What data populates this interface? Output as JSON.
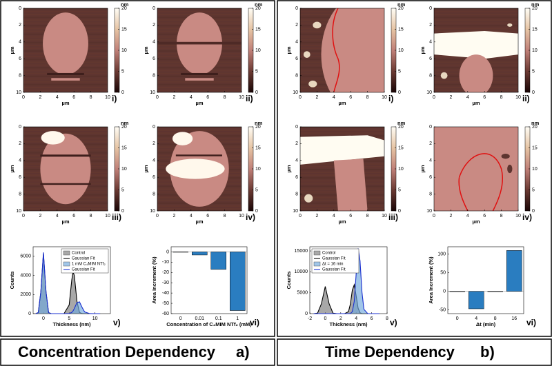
{
  "afm_axes": {
    "lim": [
      0,
      10
    ],
    "ticks": [
      0,
      2,
      4,
      6,
      8,
      10
    ],
    "unit": "µm",
    "colorbar_lim": [
      0,
      20
    ],
    "colorbar_ticks": [
      0,
      5,
      10,
      15,
      20
    ],
    "colorbar_unit": "nm"
  },
  "panels": [
    {
      "title": "Concentration Dependency",
      "letter": "a)",
      "images": [
        "i)",
        "ii)",
        "iii)",
        "iv)"
      ],
      "chart_data": [
        {
          "type": "histogram",
          "label": "v)",
          "x_label": "Thickness (nm)",
          "y_label": "Counts",
          "legend": "upper right",
          "xlim": [
            -2,
            13
          ],
          "xticks": [
            0,
            5,
            10
          ],
          "ylim": [
            0,
            7000
          ],
          "yticks": [
            0,
            2000,
            4000,
            6000
          ],
          "x": [
            -1.5,
            -1,
            -0.5,
            0,
            0.5,
            1,
            1.5,
            2,
            3,
            4,
            5,
            5.5,
            5.75,
            6,
            6.5,
            7,
            7.5,
            8,
            9,
            10,
            11
          ],
          "series": [
            {
              "name": "Control",
              "kind": "histogram",
              "color": "#7a7a7a",
              "values": [
                0,
                107,
                2270,
                6300,
                2270,
                107,
                0,
                0,
                0,
                0,
                906,
                3520,
                4370,
                3990,
                1310,
                126,
                3,
                0,
                0,
                0,
                0
              ]
            },
            {
              "name": "Gaussian Fit",
              "kind": "fit",
              "color": "#000000",
              "values": [
                0,
                107,
                2270,
                6300,
                2270,
                107,
                0,
                0,
                0,
                0,
                906,
                3520,
                4370,
                3990,
                1310,
                126,
                3,
                0,
                0,
                0,
                0
              ]
            },
            {
              "name": "1 mM C₄MIM NTf₂",
              "kind": "histogram",
              "color": "#6fa8dc",
              "values": [
                0,
                109,
                2300,
                6400,
                2300,
                109,
                0,
                0,
                0,
                0,
                14,
                125,
                281,
                535,
                1150,
                1230,
                660,
                176,
                2,
                0,
                0
              ]
            },
            {
              "name": "Gaussian Fit",
              "kind": "fit",
              "color": "#1a2fd0",
              "values": [
                0,
                109,
                2300,
                6400,
                2300,
                109,
                0,
                0,
                0,
                0,
                14,
                125,
                281,
                535,
                1150,
                1230,
                660,
                176,
                2,
                0,
                0
              ]
            }
          ]
        },
        {
          "type": "bar",
          "label": "vi)",
          "x_label": "Concentration of C₄MIM NTf₂ (mM)",
          "y_label": "Area Increment (%)",
          "categories": [
            "0",
            "0.01",
            "0.1",
            "1"
          ],
          "values": [
            0,
            -3,
            -17,
            -57
          ],
          "color": "#2a7dc0",
          "ylim": [
            -60,
            5
          ],
          "yticks": [
            -60,
            -50,
            -40,
            -30,
            -20,
            -10,
            0
          ]
        }
      ]
    },
    {
      "title": "Time Dependency",
      "letter": "b)",
      "images": [
        "i)",
        "ii)",
        "iii)",
        "iv)"
      ],
      "chart_data": [
        {
          "type": "histogram",
          "label": "v)",
          "x_label": "Thickness (nm)",
          "y_label": "Counts",
          "legend": "upper left",
          "xlim": [
            -2,
            8
          ],
          "xticks": [
            -2,
            0,
            2,
            4,
            6,
            8
          ],
          "ylim": [
            0,
            16000
          ],
          "yticks": [
            0,
            5000,
            10000,
            15000
          ],
          "x": [
            -1.5,
            -1,
            -0.5,
            0,
            0.5,
            1,
            1.5,
            2,
            2.5,
            3,
            3.25,
            3.5,
            3.75,
            4,
            4.25,
            4.5,
            4.75,
            5,
            5.5,
            6,
            7
          ],
          "series": [
            {
              "name": "Control",
              "kind": "histogram",
              "color": "#7a7a7a",
              "values": [
                0,
                110,
                2350,
                6500,
                2350,
                110,
                0,
                0,
                0,
                460,
                2280,
                5600,
                6900,
                4250,
                1300,
                200,
                15,
                0,
                0,
                0,
                0
              ]
            },
            {
              "name": "Gaussian Fit",
              "kind": "fit",
              "color": "#000000",
              "values": [
                0,
                110,
                2350,
                6500,
                2350,
                110,
                0,
                0,
                0,
                460,
                2280,
                5600,
                6900,
                4250,
                1300,
                200,
                15,
                0,
                0,
                0,
                0
              ]
            },
            {
              "name": "Δt = 16 min",
              "kind": "histogram",
              "color": "#6fa8dc",
              "values": [
                0,
                0,
                0,
                0,
                0,
                0,
                0,
                0,
                0,
                0,
                35,
                450,
                2940,
                9580,
                15580,
                12650,
                5130,
                1040,
                5,
                0,
                0
              ]
            },
            {
              "name": "Gaussian Fit",
              "kind": "fit",
              "color": "#1a2fd0",
              "values": [
                0,
                0,
                0,
                0,
                0,
                0,
                0,
                0,
                0,
                0,
                35,
                450,
                2940,
                9580,
                15580,
                12650,
                5130,
                1040,
                5,
                0,
                0
              ]
            }
          ]
        },
        {
          "type": "bar",
          "label": "vi)",
          "x_label": "Δt (min)",
          "y_label": "Area Increment (%)",
          "categories": [
            "0",
            "4",
            "8",
            "16"
          ],
          "values": [
            0,
            -47,
            0,
            110
          ],
          "color": "#2a7dc0",
          "ylim": [
            -60,
            120
          ],
          "yticks": [
            -50,
            0,
            50,
            100
          ]
        }
      ]
    }
  ]
}
